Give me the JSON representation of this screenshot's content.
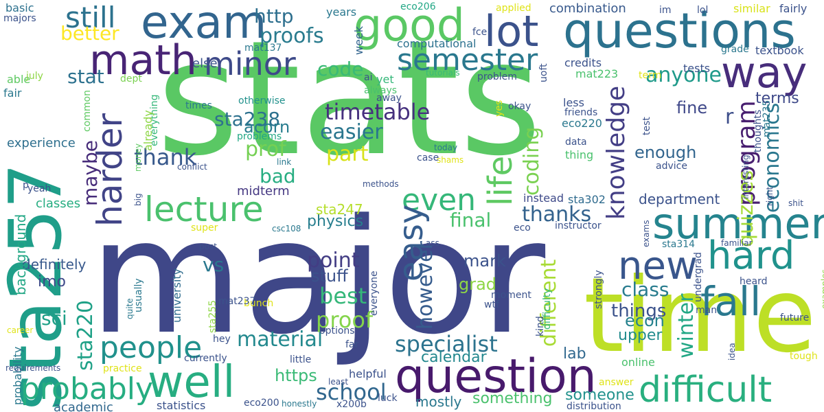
{
  "wordcloud": {
    "background": "#ffffff",
    "palette": [
      "#440154",
      "#46327e",
      "#365c8d",
      "#277f8e",
      "#1fa187",
      "#4ac16d",
      "#a0da39",
      "#fde725"
    ],
    "words": [
      {
        "text": "stats",
        "color": "#5ac864"
      },
      {
        "text": "major",
        "color": "#3f4788"
      },
      {
        "text": "time",
        "color": "#bddf26"
      },
      {
        "text": "sta257",
        "color": "#1f9e89"
      },
      {
        "text": "questions",
        "color": "#2c728e"
      },
      {
        "text": "question",
        "color": "#481a6c"
      },
      {
        "text": "exam",
        "color": "#32658e"
      },
      {
        "text": "good",
        "color": "#5ac864"
      },
      {
        "text": "lot",
        "color": "#3b528b"
      },
      {
        "text": "way",
        "color": "#472d7b"
      },
      {
        "text": "math",
        "color": "#482475"
      },
      {
        "text": "summer",
        "color": "#25848e"
      },
      {
        "text": "well",
        "color": "#27ad81"
      },
      {
        "text": "new",
        "color": "#39568c"
      },
      {
        "text": "hard",
        "color": "#20928c"
      },
      {
        "text": "fall",
        "color": "#2a788e"
      },
      {
        "text": "difficult",
        "color": "#29af7f"
      },
      {
        "text": "lecture",
        "color": "#4ac16d"
      },
      {
        "text": "harder",
        "color": "#414487"
      },
      {
        "text": "sta220",
        "color": "#1fa187"
      },
      {
        "text": "minor",
        "color": "#3e4a89"
      },
      {
        "text": "semester",
        "color": "#2a788e"
      },
      {
        "text": "still",
        "color": "#2c728e"
      },
      {
        "text": "life",
        "color": "#5ec962"
      },
      {
        "text": "knowledge",
        "color": "#433e85"
      },
      {
        "text": "people",
        "color": "#21918c"
      },
      {
        "text": "probably",
        "color": "#26ad81"
      },
      {
        "text": "program",
        "color": "#481f70"
      },
      {
        "text": "even",
        "color": "#35b779"
      },
      {
        "text": "easy",
        "color": "#365d8d"
      },
      {
        "text": "specialist",
        "color": "#2c738e"
      },
      {
        "text": "school",
        "color": "#31678e"
      },
      {
        "text": "timetable",
        "color": "#46307e"
      },
      {
        "text": "easier",
        "color": "#2a768e"
      },
      {
        "text": "quizzes",
        "color": "#a5db36"
      },
      {
        "text": "economics",
        "color": "#2a778e"
      },
      {
        "text": "thank",
        "color": "#38598c"
      },
      {
        "text": "maybe",
        "color": "#472c7a"
      },
      {
        "text": "material",
        "color": "#23898e"
      },
      {
        "text": "proof",
        "color": "#84d44b"
      },
      {
        "text": "best",
        "color": "#35b779"
      },
      {
        "text": "point",
        "color": "#433d84"
      },
      {
        "text": "however",
        "color": "#365c8d"
      },
      {
        "text": "different",
        "color": "#a8db34"
      },
      {
        "text": "winter",
        "color": "#22a785"
      },
      {
        "text": "coding",
        "color": "#7ad151"
      },
      {
        "text": "anyone",
        "color": "#1f9a8a"
      },
      {
        "text": "proofs",
        "color": "#297b8e"
      },
      {
        "text": "code",
        "color": "#3aba76"
      },
      {
        "text": "stat",
        "color": "#2c718e"
      },
      {
        "text": "better",
        "color": "#fde725"
      },
      {
        "text": "http",
        "color": "#2e6f8e"
      },
      {
        "text": "thanks",
        "color": "#33628d"
      },
      {
        "text": "prof",
        "color": "#75d054"
      },
      {
        "text": "part",
        "color": "#d8e219"
      },
      {
        "text": "bad",
        "color": "#27ad81"
      },
      {
        "text": "vs",
        "color": "#2a788e"
      },
      {
        "text": "sci",
        "color": "#1fa088"
      },
      {
        "text": "sta238",
        "color": "#2d718e"
      },
      {
        "text": "final",
        "color": "#4ac16d"
      },
      {
        "text": "class",
        "color": "#287c8e"
      },
      {
        "text": "fine",
        "color": "#3f4889"
      },
      {
        "text": "things",
        "color": "#3b528b"
      },
      {
        "text": "enough",
        "color": "#32658e"
      },
      {
        "text": "department",
        "color": "#3b528b"
      },
      {
        "text": "terms",
        "color": "#3e4989"
      },
      {
        "text": "acorn",
        "color": "#287c8e"
      },
      {
        "text": "physics",
        "color": "#277e8e"
      },
      {
        "text": "sta247",
        "color": "#b5de2b"
      },
      {
        "text": "stuff",
        "color": "#3b528b"
      },
      {
        "text": "grad",
        "color": "#8ed645"
      },
      {
        "text": "mark",
        "color": "#3b528b"
      },
      {
        "text": "upper",
        "color": "#228c8d"
      },
      {
        "text": "econ",
        "color": "#26828e"
      },
      {
        "text": "lab",
        "color": "#31688e"
      },
      {
        "text": "calendar",
        "color": "#23888e"
      },
      {
        "text": "something",
        "color": "#4ac16d"
      },
      {
        "text": "someone",
        "color": "#21918c"
      },
      {
        "text": "mostly",
        "color": "#2a788e"
      },
      {
        "text": "https",
        "color": "#3aba76"
      },
      {
        "text": "definitely",
        "color": "#38598c"
      },
      {
        "text": "background",
        "color": "#22a785"
      },
      {
        "text": "classes",
        "color": "#26ad81"
      },
      {
        "text": "imo",
        "color": "#3e4a89"
      },
      {
        "text": "experience",
        "color": "#2e6f8e"
      },
      {
        "text": "probability",
        "color": "#2a788e"
      },
      {
        "text": "university",
        "color": "#2f6c8e"
      },
      {
        "text": "academic",
        "color": "#31688e"
      },
      {
        "text": "statistics",
        "color": "#3b528b"
      },
      {
        "text": "r",
        "color": "#3d4e8a"
      },
      {
        "text": "sta302",
        "color": "#2f6b8e"
      },
      {
        "text": "instead",
        "color": "#3e4a89"
      },
      {
        "text": "helpful",
        "color": "#3b528b"
      },
      {
        "text": "midterm",
        "color": "#453882"
      },
      {
        "text": "combination",
        "color": "#38598c"
      },
      {
        "text": "week",
        "color": "#32648e"
      },
      {
        "text": "computational",
        "color": "#2c718e"
      },
      {
        "text": "else",
        "color": "#3b528b"
      },
      {
        "text": "basic",
        "color": "#2c718e"
      },
      {
        "text": "majors",
        "color": "#3b528b"
      },
      {
        "text": "able",
        "color": "#5ec962"
      },
      {
        "text": "july",
        "color": "#8ed645"
      },
      {
        "text": "fair",
        "color": "#2a788e"
      },
      {
        "text": "years",
        "color": "#2a788e"
      },
      {
        "text": "eco206",
        "color": "#22a785"
      },
      {
        "text": "applied",
        "color": "#dfe318"
      },
      {
        "text": "im",
        "color": "#3b528b"
      },
      {
        "text": "lol",
        "color": "#3b528b"
      },
      {
        "text": "similar",
        "color": "#d8e219"
      },
      {
        "text": "fairly",
        "color": "#3b528b"
      },
      {
        "text": "fce",
        "color": "#3b528b"
      },
      {
        "text": "mat137",
        "color": "#2a788e"
      },
      {
        "text": "grade",
        "color": "#2a788e"
      },
      {
        "text": "textbook",
        "color": "#3b528b"
      },
      {
        "text": "tests",
        "color": "#3b528b"
      },
      {
        "text": "credits",
        "color": "#3b528b"
      },
      {
        "text": "mat223",
        "color": "#4ac16d"
      },
      {
        "text": "term",
        "color": "#dfe318"
      },
      {
        "text": "uoft",
        "color": "#3b528b"
      },
      {
        "text": "problem",
        "color": "#3b528b"
      },
      {
        "text": "dept",
        "color": "#7ad151"
      },
      {
        "text": "ai",
        "color": "#3b528b"
      },
      {
        "text": "yet",
        "color": "#35b779"
      },
      {
        "text": "always",
        "color": "#4ac16d"
      },
      {
        "text": "tutorials",
        "color": "#3aba76"
      },
      {
        "text": "away",
        "color": "#3b528b"
      },
      {
        "text": "otherwise",
        "color": "#21918c"
      },
      {
        "text": "times",
        "color": "#2a788e"
      },
      {
        "text": "common",
        "color": "#5ec962"
      },
      {
        "text": "everything",
        "color": "#35b779"
      },
      {
        "text": "already",
        "color": "#8ed645"
      },
      {
        "text": "problems",
        "color": "#22a785"
      },
      {
        "text": "yes",
        "color": "#dfe318"
      },
      {
        "text": "okay",
        "color": "#3b528b"
      },
      {
        "text": "less",
        "color": "#3b528b"
      },
      {
        "text": "friends",
        "color": "#3b528b"
      },
      {
        "text": "eco220",
        "color": "#2a788e"
      },
      {
        "text": "test",
        "color": "#3b528b"
      },
      {
        "text": "thoughts",
        "color": "#3b528b"
      },
      {
        "text": "mat235",
        "color": "#2a788e"
      },
      {
        "text": "data",
        "color": "#3b528b"
      },
      {
        "text": "thing",
        "color": "#4ac16d"
      },
      {
        "text": "today",
        "color": "#2a788e"
      },
      {
        "text": "link",
        "color": "#2a788e"
      },
      {
        "text": "money",
        "color": "#5ec962"
      },
      {
        "text": "conflict",
        "color": "#3b528b"
      },
      {
        "text": "shams",
        "color": "#dfe318"
      },
      {
        "text": "case",
        "color": "#3b528b"
      },
      {
        "text": "advice",
        "color": "#3b528b"
      },
      {
        "text": "interesting",
        "color": "#3b528b"
      },
      {
        "text": "right",
        "color": "#3b528b"
      },
      {
        "text": "shit",
        "color": "#3b528b"
      },
      {
        "text": "p",
        "color": "#3b528b"
      },
      {
        "text": "yeah",
        "color": "#3b528b"
      },
      {
        "text": "big",
        "color": "#3b528b"
      },
      {
        "text": "methods",
        "color": "#3b528b"
      },
      {
        "text": "super",
        "color": "#dfe318"
      },
      {
        "text": "csc108",
        "color": "#2a788e"
      },
      {
        "text": "eco",
        "color": "#3b528b"
      },
      {
        "text": "instructor",
        "color": "#3b528b"
      },
      {
        "text": "exams",
        "color": "#3b528b"
      },
      {
        "text": "post",
        "color": "#3b528b"
      },
      {
        "text": "ass",
        "color": "#3b528b"
      },
      {
        "text": "difficulty",
        "color": "#35b779"
      },
      {
        "text": "sta314",
        "color": "#2a788e"
      },
      {
        "text": "familiar",
        "color": "#3b528b"
      },
      {
        "text": "undergrad",
        "color": "#3b528b"
      },
      {
        "text": "man",
        "color": "#3b528b"
      },
      {
        "text": "heard",
        "color": "#3b528b"
      },
      {
        "text": "examples",
        "color": "#8ed645"
      },
      {
        "text": "usually",
        "color": "#2a788e"
      },
      {
        "text": "sta255",
        "color": "#8ed645"
      },
      {
        "text": "everyone",
        "color": "#3b528b"
      },
      {
        "text": "moment",
        "color": "#3b528b"
      },
      {
        "text": "wtf",
        "color": "#3b528b"
      },
      {
        "text": "kind",
        "color": "#3b528b"
      },
      {
        "text": "strongly",
        "color": "#3b528b"
      },
      {
        "text": "future",
        "color": "#3b528b"
      },
      {
        "text": "bunch",
        "color": "#dfe318"
      },
      {
        "text": "quite",
        "color": "#2a788e"
      },
      {
        "text": "career",
        "color": "#dfe318"
      },
      {
        "text": "mat237",
        "color": "#3b528b"
      },
      {
        "text": "hey",
        "color": "#3b528b"
      },
      {
        "text": "options",
        "color": "#3b528b"
      },
      {
        "text": "far",
        "color": "#3b528b"
      },
      {
        "text": "idea",
        "color": "#3b528b"
      },
      {
        "text": "tough",
        "color": "#dfe318"
      },
      {
        "text": "online",
        "color": "#4ac16d"
      },
      {
        "text": "requirements",
        "color": "#3b528b"
      },
      {
        "text": "practice",
        "color": "#dfe318"
      },
      {
        "text": "currently",
        "color": "#3b528b"
      },
      {
        "text": "little",
        "color": "#3b528b"
      },
      {
        "text": "least",
        "color": "#3b528b"
      },
      {
        "text": "answer",
        "color": "#dfe318"
      },
      {
        "text": "honestly",
        "color": "#2a788e"
      },
      {
        "text": "eco200",
        "color": "#3b528b"
      },
      {
        "text": "x200b",
        "color": "#3b528b"
      },
      {
        "text": "luck",
        "color": "#3b528b"
      },
      {
        "text": "distribution",
        "color": "#3b528b"
      }
    ]
  }
}
